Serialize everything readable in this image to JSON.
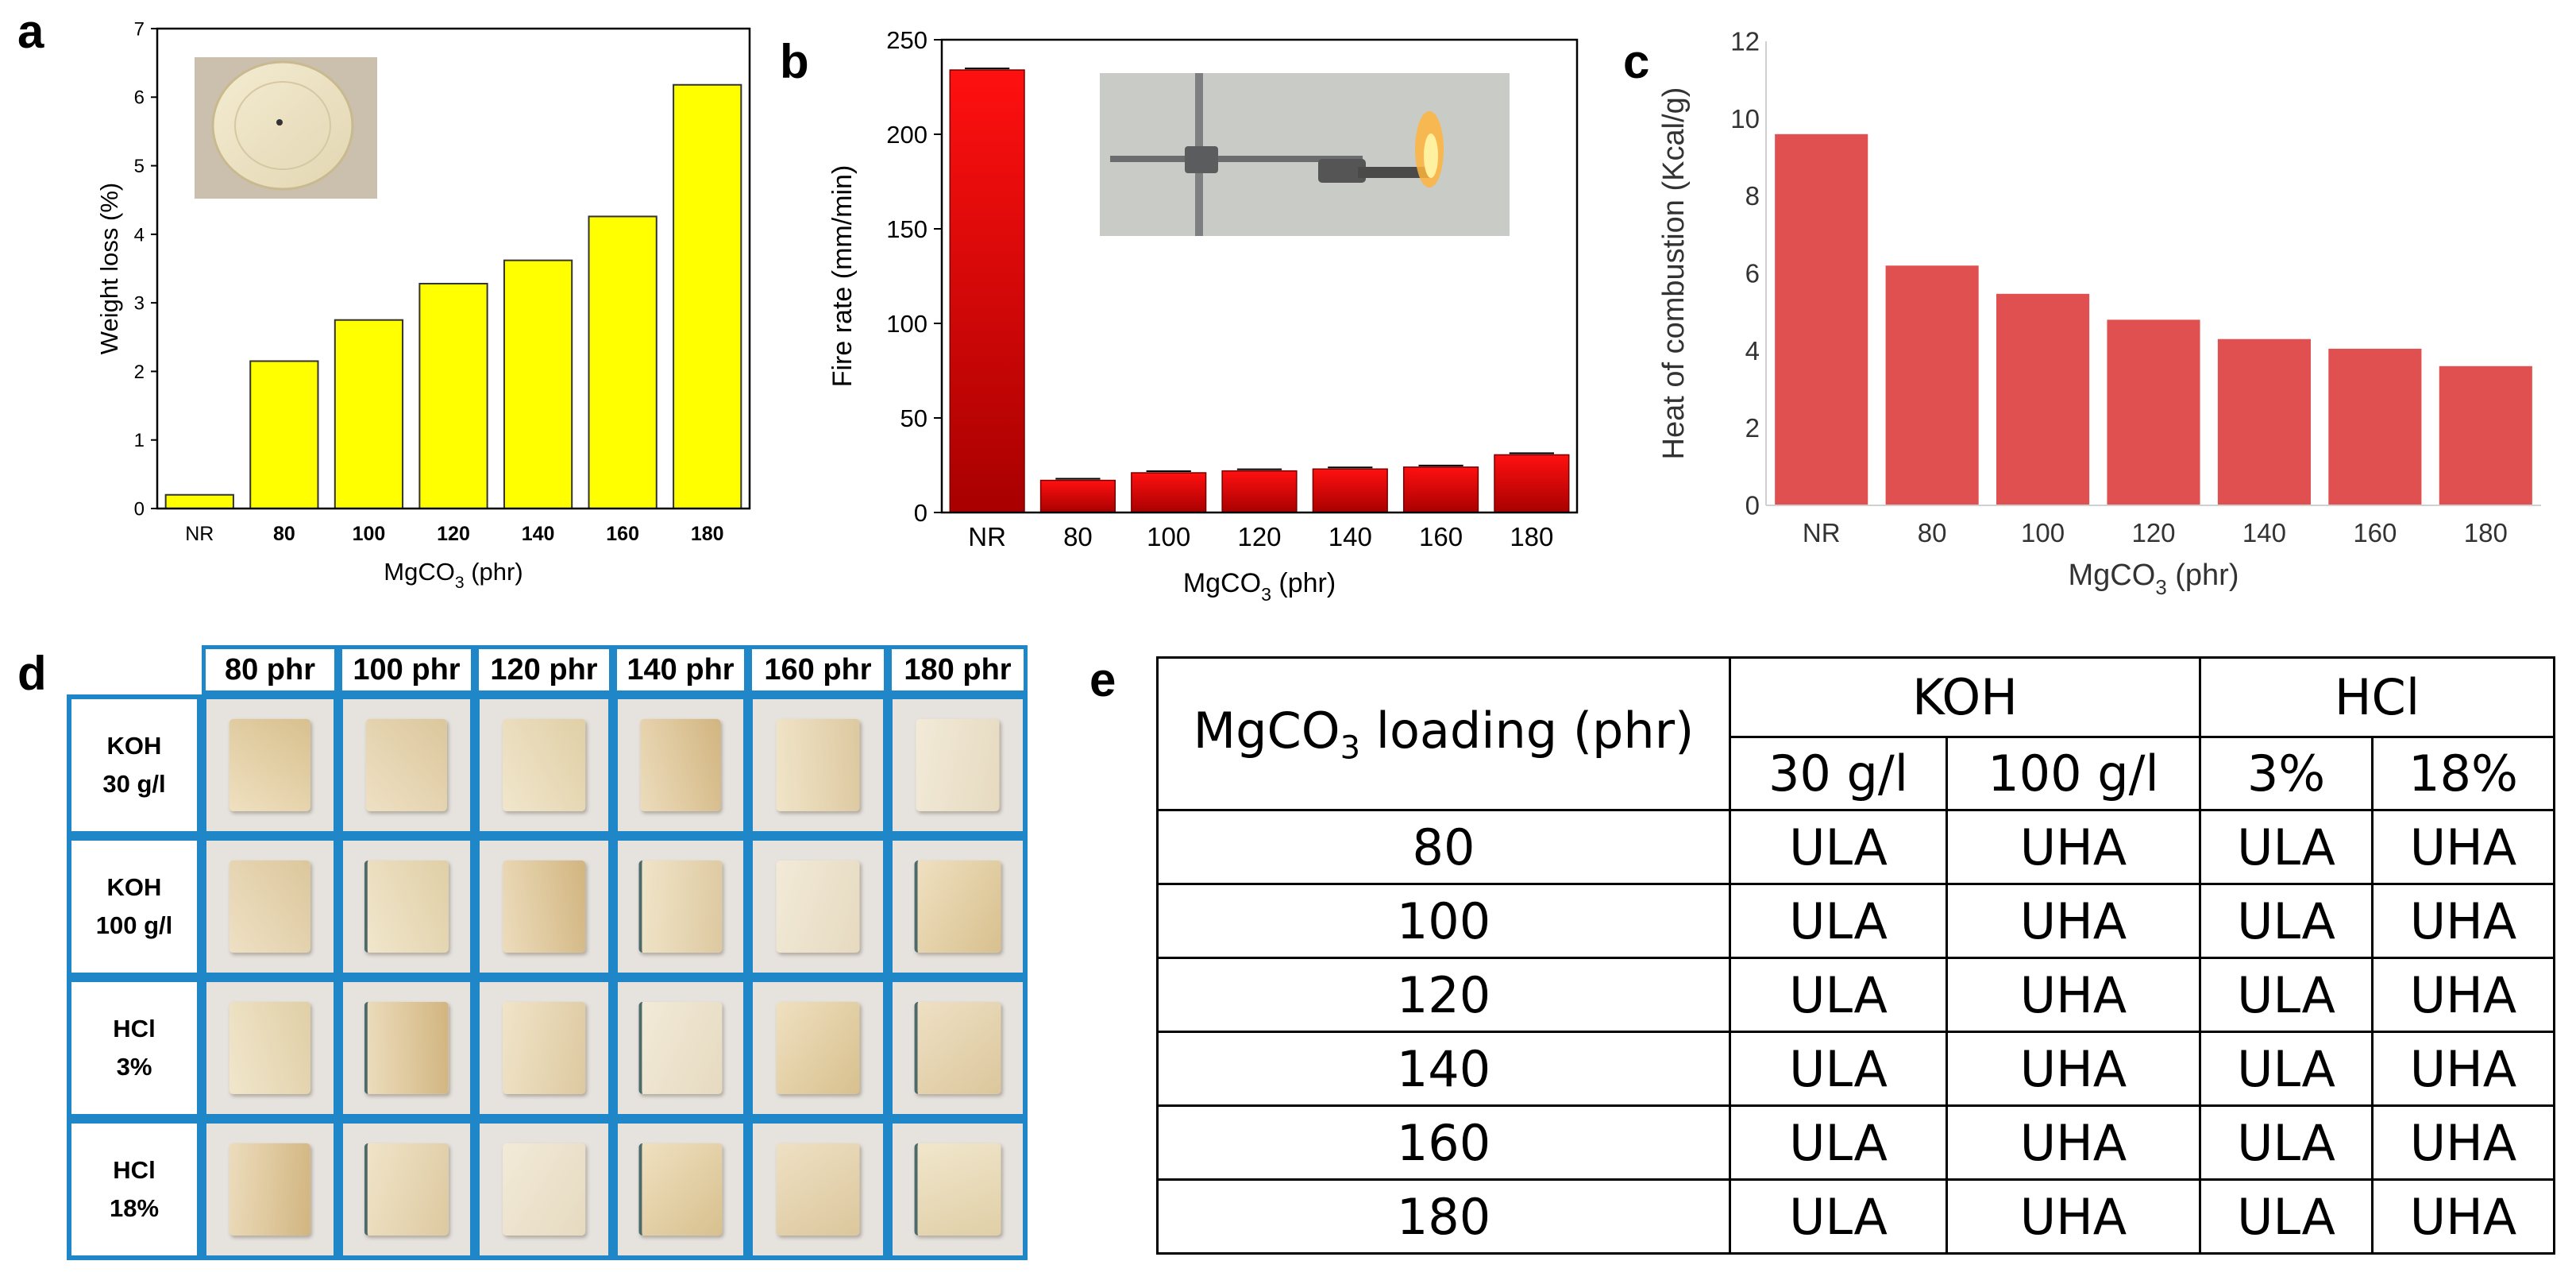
{
  "panel_letters": {
    "a": "a",
    "b": "b",
    "c": "c",
    "d": "d",
    "e": "e"
  },
  "chart_data": [
    {
      "id": "a",
      "type": "bar",
      "categories": [
        "NR",
        "80",
        "100",
        "120",
        "140",
        "160",
        "180"
      ],
      "values": [
        0.2,
        2.15,
        2.75,
        3.28,
        3.62,
        4.26,
        6.18
      ],
      "xlabel": "MgCO",
      "xlabel_sub": "3",
      "xlabel_suffix": " (phr)",
      "ylabel": "Weight loss (%)",
      "ylim": [
        0,
        7
      ],
      "yticks": [
        0,
        1,
        2,
        3,
        4,
        5,
        6,
        7
      ],
      "color": "#ffff00",
      "inset": "photo of a round disc sample"
    },
    {
      "id": "b",
      "type": "bar",
      "categories": [
        "NR",
        "80",
        "100",
        "120",
        "140",
        "160",
        "180"
      ],
      "values": [
        234,
        17,
        21,
        22,
        23,
        24,
        30.5
      ],
      "xlabel": "MgCO",
      "xlabel_sub": "3",
      "xlabel_suffix": " (phr)",
      "ylabel": "Fire rate (mm/min)",
      "ylim": [
        0,
        250
      ],
      "yticks": [
        0,
        50,
        100,
        150,
        200,
        250
      ],
      "color": "#ff0000",
      "error_bars": true,
      "inset": "photo of a burning strip held by a clamp"
    },
    {
      "id": "c",
      "type": "bar",
      "categories": [
        "NR",
        "80",
        "100",
        "120",
        "140",
        "160",
        "180"
      ],
      "values": [
        9.6,
        6.2,
        5.47,
        4.8,
        4.3,
        4.05,
        3.6
      ],
      "xlabel": "MgCO",
      "xlabel_sub": "3",
      "xlabel_suffix": " (phr)",
      "ylabel": "Heat of combustion (Kcal/g)",
      "ylim": [
        0,
        12
      ],
      "yticks": [
        0,
        2,
        4,
        6,
        8,
        10,
        12
      ],
      "color": "#e05050",
      "grid": false
    },
    {
      "id": "e",
      "type": "table",
      "corner_text": "MgCO",
      "corner_sub": "3",
      "corner_suffix": " loading (phr)",
      "group_headers": [
        "KOH",
        "HCl"
      ],
      "sub_headers": [
        "30 g/l",
        "100 g/l",
        "3%",
        "18%"
      ],
      "rows": [
        [
          "80",
          "ULA",
          "UHA",
          "ULA",
          "UHA"
        ],
        [
          "100",
          "ULA",
          "UHA",
          "ULA",
          "UHA"
        ],
        [
          "120",
          "ULA",
          "UHA",
          "ULA",
          "UHA"
        ],
        [
          "140",
          "ULA",
          "UHA",
          "ULA",
          "UHA"
        ],
        [
          "160",
          "ULA",
          "UHA",
          "ULA",
          "UHA"
        ],
        [
          "180",
          "ULA",
          "UHA",
          "ULA",
          "UHA"
        ]
      ]
    }
  ],
  "panel_d": {
    "column_headers": [
      "80 phr",
      "100 phr",
      "120 phr",
      "140 phr",
      "160 phr",
      "180 phr"
    ],
    "row_labels": [
      [
        "KOH",
        "30 g/l"
      ],
      [
        "KOH",
        "100 g/l"
      ],
      [
        "HCl",
        "3%"
      ],
      [
        "HCl",
        "18%"
      ]
    ],
    "cell_content": "photo of an exposed rubber sample square"
  }
}
